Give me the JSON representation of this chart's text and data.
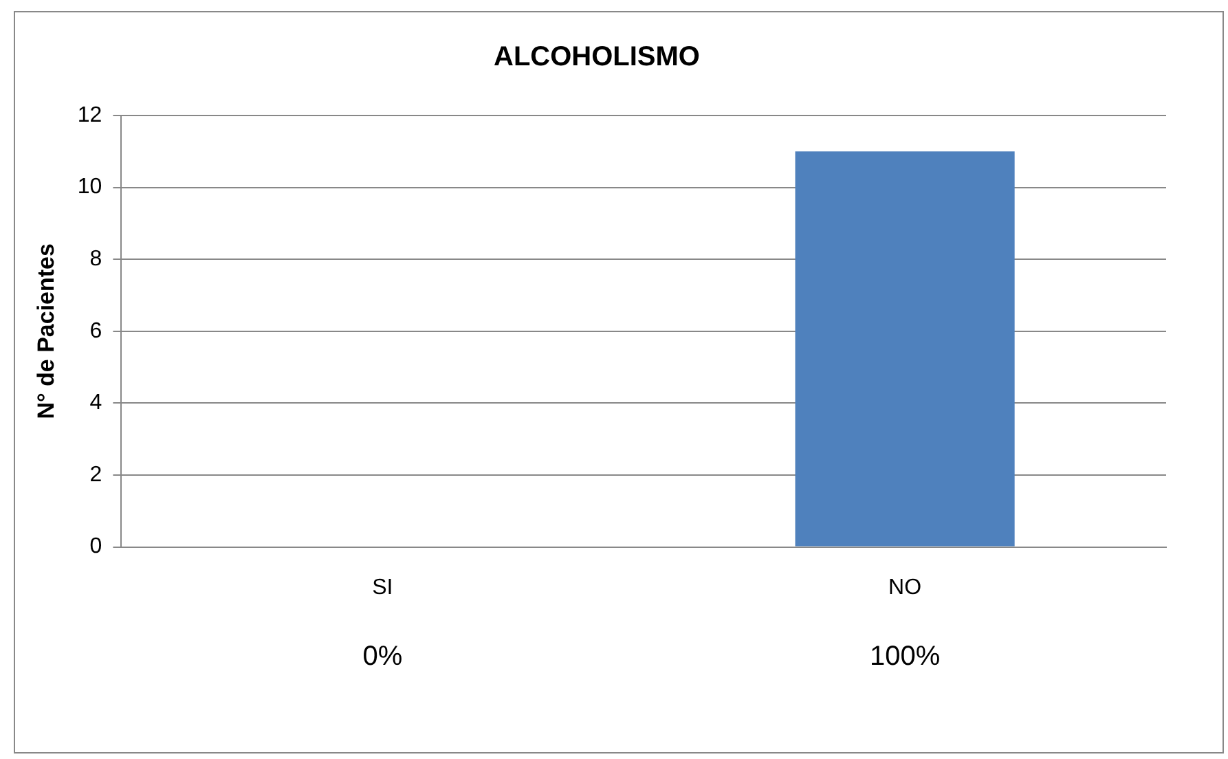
{
  "chart_data": {
    "type": "bar",
    "title": "ALCOHOLISMO",
    "ylabel": "N° de Pacientes",
    "categories": [
      "SI",
      "NO"
    ],
    "series": [
      {
        "color": "#4f81bd",
        "values": [
          0,
          11
        ]
      }
    ],
    "annotations": [
      "0%",
      "100%"
    ],
    "ylim": [
      0,
      12
    ],
    "yticks": [
      0,
      2,
      4,
      6,
      8,
      10,
      12
    ],
    "grid": "y",
    "legend": false
  }
}
